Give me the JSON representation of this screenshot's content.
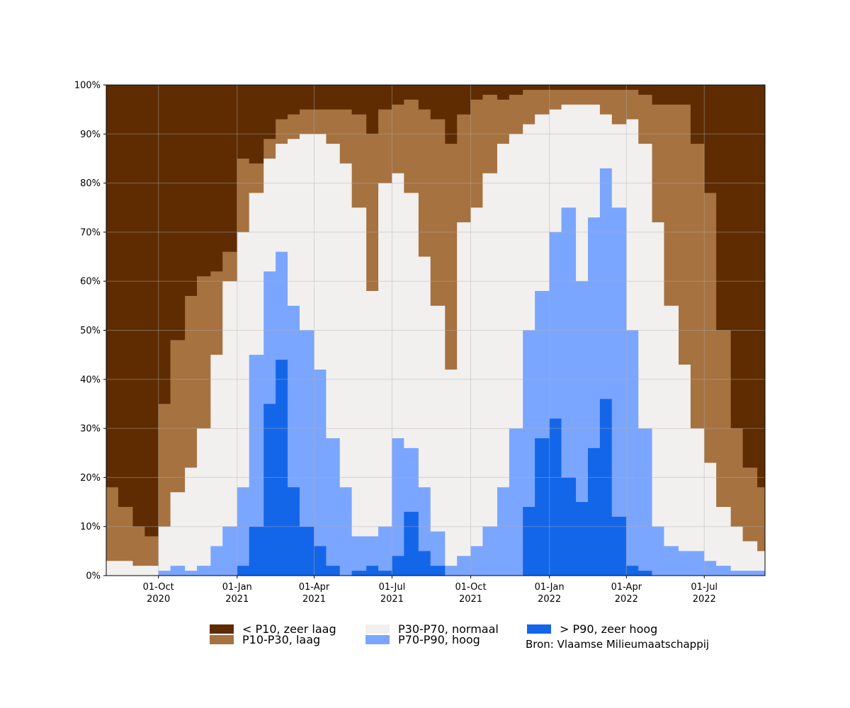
{
  "chart_data": {
    "type": "area",
    "stacked": true,
    "y_unit": "%",
    "ylim": [
      0,
      100
    ],
    "yticks": [
      "0%",
      "10%",
      "20%",
      "30%",
      "40%",
      "50%",
      "60%",
      "70%",
      "80%",
      "90%",
      "100%"
    ],
    "xlim": [
      "2020-08-01",
      "2022-09-10"
    ],
    "xticks": [
      {
        "date": "2020-10-01",
        "line1": "01-Oct",
        "line2": "2020"
      },
      {
        "date": "2021-01-01",
        "line1": "01-Jan",
        "line2": "2021"
      },
      {
        "date": "2021-04-01",
        "line1": "01-Apr",
        "line2": "2021"
      },
      {
        "date": "2021-07-01",
        "line1": "01-Jul",
        "line2": "2021"
      },
      {
        "date": "2021-10-01",
        "line1": "01-Oct",
        "line2": "2021"
      },
      {
        "date": "2022-01-01",
        "line1": "01-Jan",
        "line2": "2022"
      },
      {
        "date": "2022-04-01",
        "line1": "01-Apr",
        "line2": "2022"
      },
      {
        "date": "2022-07-01",
        "line1": "01-Jul",
        "line2": "2022"
      }
    ],
    "grid": true,
    "legend_position": "bottom",
    "source": "Bron: Vlaamse Milieumaatschappij",
    "boundary_order_top_to_bottom": [
      "< P10, zeer laag",
      "P10-P30, laag",
      "P30-P70, normaal",
      "P70-P90, hoog",
      "> P90, zeer hoog"
    ],
    "x": [
      "2020-08-01",
      "2020-08-15",
      "2020-09-01",
      "2020-09-15",
      "2020-10-01",
      "2020-10-15",
      "2020-11-01",
      "2020-11-15",
      "2020-12-01",
      "2020-12-15",
      "2021-01-01",
      "2021-01-15",
      "2021-02-01",
      "2021-02-15",
      "2021-03-01",
      "2021-03-15",
      "2021-04-01",
      "2021-04-15",
      "2021-05-01",
      "2021-05-15",
      "2021-06-01",
      "2021-06-15",
      "2021-07-01",
      "2021-07-15",
      "2021-08-01",
      "2021-08-15",
      "2021-09-01",
      "2021-09-15",
      "2021-10-01",
      "2021-10-15",
      "2021-11-01",
      "2021-11-15",
      "2021-12-01",
      "2021-12-15",
      "2022-01-01",
      "2022-01-15",
      "2022-02-01",
      "2022-02-15",
      "2022-03-01",
      "2022-03-15",
      "2022-04-01",
      "2022-04-15",
      "2022-05-01",
      "2022-05-15",
      "2022-06-01",
      "2022-06-15",
      "2022-07-01",
      "2022-07-15",
      "2022-08-01",
      "2022-08-15",
      "2022-09-01",
      "2022-09-10"
    ],
    "series": [
      {
        "name": "< P10, zeer laag",
        "color": "#5e2c00",
        "boundary": [
          18,
          14,
          10,
          8,
          35,
          48,
          57,
          61,
          62,
          66,
          85,
          84,
          89,
          93,
          94,
          95,
          95,
          95,
          95,
          94,
          90,
          95,
          96,
          97,
          95,
          93,
          88,
          94,
          97,
          98,
          97,
          98,
          99,
          99,
          99,
          99,
          99,
          99,
          99,
          99,
          99,
          98,
          96,
          96,
          96,
          88,
          78,
          50,
          30,
          22,
          18,
          17
        ]
      },
      {
        "name": "P10-P30, laag",
        "color": "#a67240",
        "boundary": [
          3,
          3,
          2,
          2,
          10,
          17,
          22,
          30,
          45,
          60,
          70,
          78,
          85,
          88,
          89,
          90,
          90,
          88,
          84,
          75,
          58,
          80,
          82,
          78,
          65,
          55,
          42,
          72,
          75,
          82,
          88,
          90,
          92,
          94,
          95,
          96,
          96,
          96,
          94,
          92,
          93,
          88,
          72,
          55,
          43,
          30,
          23,
          14,
          10,
          7,
          5,
          5
        ]
      },
      {
        "name": "P30-P70, normaal",
        "color": "#f2f0ef",
        "boundary": [
          0,
          0,
          0,
          0,
          1,
          2,
          1,
          2,
          6,
          10,
          18,
          45,
          62,
          66,
          55,
          50,
          42,
          28,
          18,
          8,
          8,
          10,
          28,
          26,
          18,
          9,
          2,
          4,
          6,
          10,
          18,
          30,
          50,
          58,
          70,
          75,
          60,
          73,
          83,
          75,
          50,
          30,
          10,
          6,
          5,
          5,
          3,
          2,
          1,
          1,
          1,
          1
        ]
      },
      {
        "name": "P70-P90, hoog",
        "color": "#7aa6ff",
        "boundary": [
          0,
          0,
          0,
          0,
          0,
          0,
          0,
          0,
          0,
          0,
          2,
          10,
          35,
          44,
          18,
          10,
          6,
          2,
          0,
          1,
          2,
          1,
          4,
          13,
          5,
          2,
          0,
          0,
          0,
          0,
          0,
          0,
          14,
          28,
          32,
          20,
          15,
          26,
          36,
          12,
          2,
          1,
          0,
          0,
          0,
          0,
          0,
          0,
          0,
          0,
          0,
          0
        ]
      },
      {
        "name": "> P90, zeer hoog",
        "color": "#1466e9",
        "boundary": [
          0,
          0,
          0,
          0,
          0,
          0,
          0,
          0,
          0,
          0,
          0,
          0,
          0,
          0,
          0,
          0,
          0,
          0,
          0,
          0,
          0,
          0,
          0,
          0,
          0,
          0,
          0,
          0,
          0,
          0,
          0,
          0,
          0,
          0,
          0,
          0,
          0,
          0,
          0,
          0,
          0,
          0,
          0,
          0,
          0,
          0,
          0,
          0,
          0,
          0,
          0,
          0
        ]
      }
    ]
  }
}
